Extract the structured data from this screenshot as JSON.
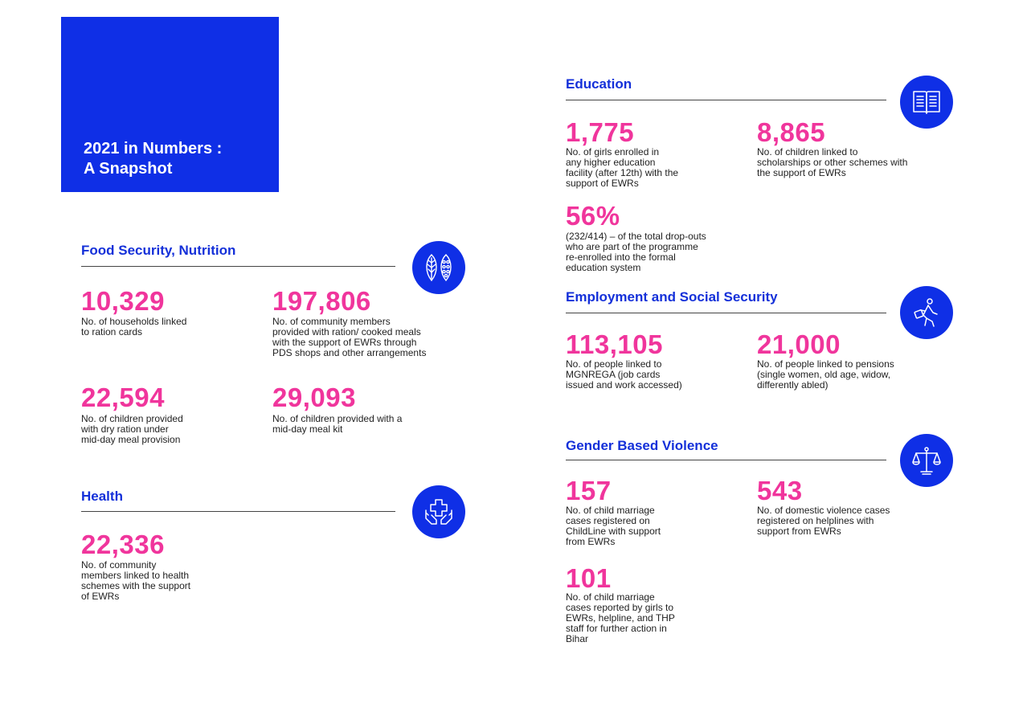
{
  "hero": {
    "line1": "2021 in Numbers :",
    "line2": "A Snapshot"
  },
  "food": {
    "title": "Food Security, Nutrition",
    "icon": "leaves-seeds-icon",
    "stats": [
      {
        "value": "10,329",
        "lines": [
          "No. of households linked",
          "to ration cards"
        ]
      },
      {
        "value": "197,806",
        "lines": [
          "No. of community members",
          "provided with ration/ cooked meals",
          "with the support of EWRs through",
          "PDS shops and other arrangements"
        ]
      },
      {
        "value": "22,594",
        "lines": [
          "No. of children provided",
          "with dry ration under",
          "mid-day meal provision"
        ]
      },
      {
        "value": "29,093",
        "lines": [
          "No. of children provided with a",
          "mid-day meal kit"
        ]
      }
    ]
  },
  "health": {
    "title": "Health",
    "icon": "hands-cross-icon",
    "stats": [
      {
        "value": "22,336",
        "lines": [
          "No. of community",
          "members linked to health",
          "schemes with the support",
          "of EWRs"
        ]
      }
    ]
  },
  "education": {
    "title": "Education",
    "icon": "open-book-icon",
    "stats": [
      {
        "value": "1,775",
        "lines": [
          "No. of girls enrolled in",
          "any higher education",
          "facility (after 12th) with the",
          "support of EWRs"
        ]
      },
      {
        "value": "8,865",
        "lines": [
          "No. of children linked to",
          "scholarships or other schemes with",
          "the support of EWRs"
        ]
      },
      {
        "value": "56%",
        "lines": [
          "(232/414) – of the total drop-outs",
          "who are part of the programme",
          "re-enrolled into the formal",
          "education system"
        ]
      }
    ]
  },
  "employment": {
    "title": "Employment and Social Security",
    "icon": "walking-person-briefcase-icon",
    "stats": [
      {
        "value": "113,105",
        "lines": [
          "No. of people linked to",
          "MGNREGA (job cards",
          "issued and work accessed)"
        ]
      },
      {
        "value": "21,000",
        "lines": [
          "No. of people linked to pensions",
          "(single women, old age, widow,",
          "differently abled)"
        ]
      }
    ]
  },
  "gbv": {
    "title": "Gender Based Violence",
    "icon": "scales-of-justice-icon",
    "stats": [
      {
        "value": "157",
        "lines": [
          "No. of child marriage",
          "cases registered on",
          "ChildLine with support",
          "from EWRs"
        ]
      },
      {
        "value": "543",
        "lines": [
          "No. of domestic violence cases",
          "registered on helplines with",
          "support from EWRs"
        ]
      },
      {
        "value": "101",
        "lines": [
          "No. of child marriage",
          "cases reported by girls to",
          "EWRs, helpline, and THP",
          "staff for further action in",
          "Bihar"
        ]
      }
    ]
  },
  "colors": {
    "brand_blue": "#0f2fe6",
    "title_blue": "#1430d9",
    "accent_pink": "#f0359c"
  }
}
